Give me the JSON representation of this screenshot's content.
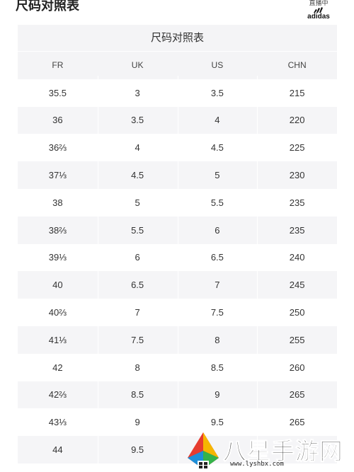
{
  "page_title": "尺码对照表",
  "brand": {
    "top_text": "直播中",
    "wordmark": "adidas"
  },
  "table": {
    "title": "尺码对照表",
    "columns": [
      "FR",
      "UK",
      "US",
      "CHN"
    ],
    "rows": [
      [
        "35.5",
        "3",
        "3.5",
        "215"
      ],
      [
        "36",
        "3.5",
        "4",
        "220"
      ],
      [
        "36⅔",
        "4",
        "4.5",
        "225"
      ],
      [
        "37⅓",
        "4.5",
        "5",
        "230"
      ],
      [
        "38",
        "5",
        "5.5",
        "235"
      ],
      [
        "38⅔",
        "5.5",
        "6",
        "235"
      ],
      [
        "39⅓",
        "6",
        "6.5",
        "240"
      ],
      [
        "40",
        "6.5",
        "7",
        "245"
      ],
      [
        "40⅔",
        "7",
        "7.5",
        "250"
      ],
      [
        "41⅓",
        "7.5",
        "8",
        "255"
      ],
      [
        "42",
        "8",
        "8.5",
        "260"
      ],
      [
        "42⅔",
        "8.5",
        "9",
        "265"
      ],
      [
        "43⅓",
        "9",
        "9.5",
        "265"
      ],
      [
        "44",
        "9.5",
        "",
        ""
      ]
    ]
  },
  "watermark": {
    "text": "八星手游网",
    "url": "www.lyshbx.com"
  }
}
